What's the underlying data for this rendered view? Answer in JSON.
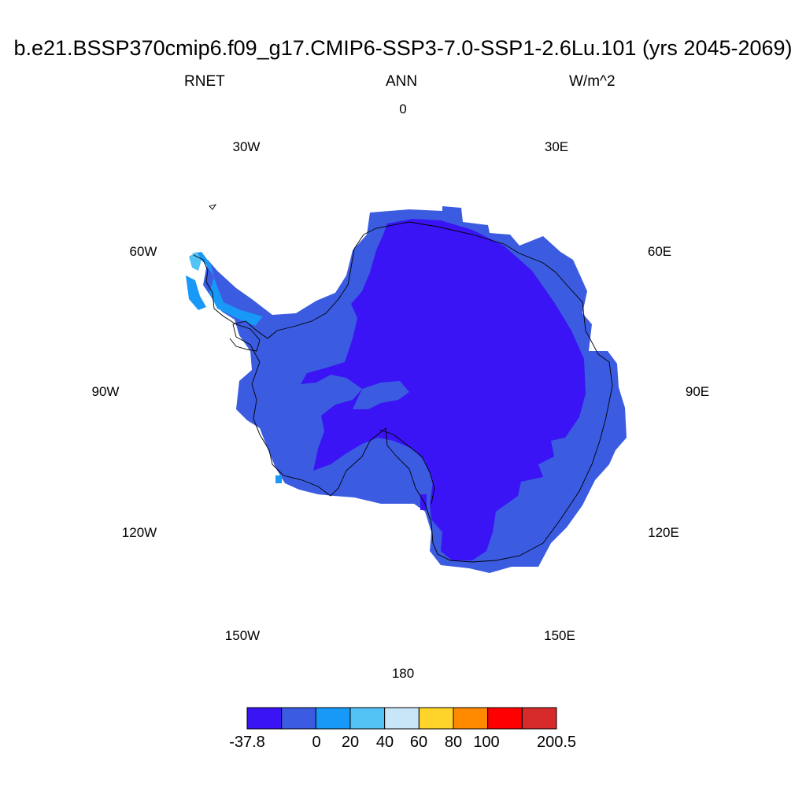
{
  "header": {
    "title": "b.e21.BSSP370cmip6.f09_g17.CMIP6-SSP3-7.0-SSP1-2.6Lu.101 (yrs 2045-2069)",
    "variable": "RNET",
    "season": "ANN",
    "units": "W/m^2"
  },
  "longitude_labels": [
    {
      "text": "0",
      "key": "lon0"
    },
    {
      "text": "30E",
      "key": "lon30e"
    },
    {
      "text": "60E",
      "key": "lon60e"
    },
    {
      "text": "90E",
      "key": "lon90e"
    },
    {
      "text": "120E",
      "key": "lon120e"
    },
    {
      "text": "150E",
      "key": "lon150e"
    },
    {
      "text": "180",
      "key": "lon180"
    },
    {
      "text": "150W",
      "key": "lon150w"
    },
    {
      "text": "120W",
      "key": "lon120w"
    },
    {
      "text": "90W",
      "key": "lon90w"
    },
    {
      "text": "60W",
      "key": "lon60w"
    },
    {
      "text": "30W",
      "key": "lon30w"
    }
  ],
  "colorbar": {
    "colors": [
      "#3a14f5",
      "#3b5ce0",
      "#1899f7",
      "#53c2f4",
      "#c8e6f8",
      "#ffd42a",
      "#ff8a00",
      "#ff0000",
      "#d72a2a"
    ],
    "labels": [
      "-37.8",
      "0",
      "20",
      "40",
      "60",
      "80",
      "100",
      "200.5"
    ]
  },
  "map_colors": {
    "interior": "#3a14f5",
    "coast": "#3b5ce0",
    "peninsula": "#1899f7",
    "peninsula_light": "#53c2f4"
  }
}
